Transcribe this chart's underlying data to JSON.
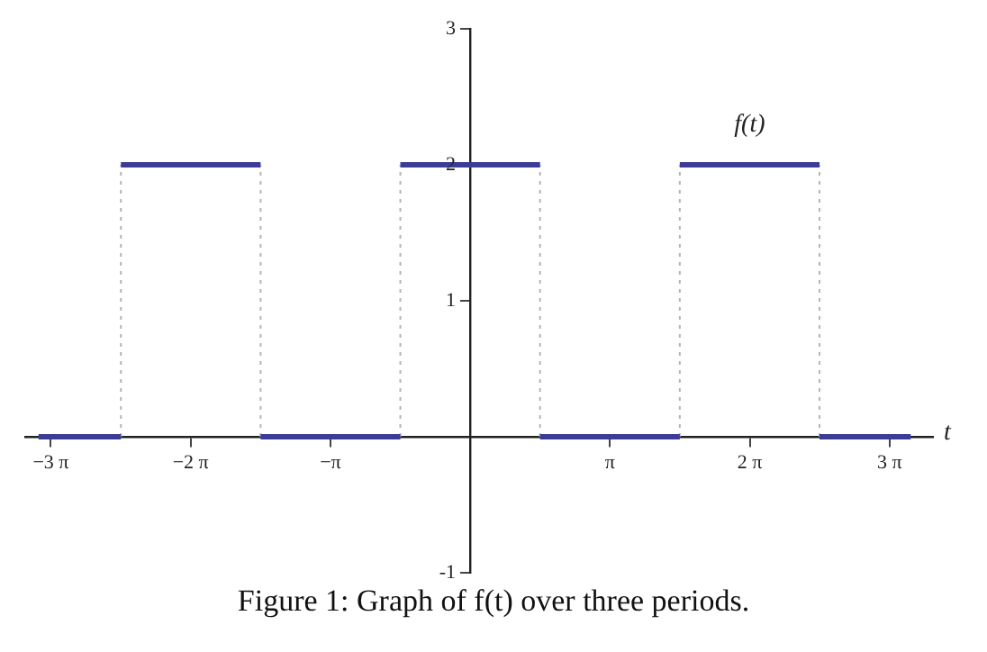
{
  "chart_data": {
    "type": "line",
    "xlabel": "t",
    "xlim": [
      -10.0,
      10.4
    ],
    "ylim": [
      -1,
      3
    ],
    "xticks": [
      {
        "value": -9.4248,
        "label": "−3 π"
      },
      {
        "value": -6.2832,
        "label": "−2 π"
      },
      {
        "value": -3.1416,
        "label": "−π"
      },
      {
        "value": 3.1416,
        "label": "π"
      },
      {
        "value": 6.2832,
        "label": "2 π"
      },
      {
        "value": 9.4248,
        "label": "3 π"
      }
    ],
    "yticks": [
      -1,
      1,
      2,
      3
    ],
    "grid": false,
    "marker": "none",
    "series": [
      {
        "color": "#3c3c96",
        "line_style": "solid",
        "x": [
          -9.7,
          -7.85
        ],
        "values": [
          0,
          0
        ]
      },
      {
        "color": "#3c3c96",
        "line_style": "solid",
        "x": [
          -7.85,
          -4.71
        ],
        "values": [
          2,
          2
        ]
      },
      {
        "color": "#3c3c96",
        "line_style": "solid",
        "x": [
          -4.71,
          -1.57
        ],
        "values": [
          0,
          0
        ]
      },
      {
        "color": "#3c3c96",
        "line_style": "solid",
        "x": [
          -1.57,
          1.57
        ],
        "values": [
          2,
          2
        ]
      },
      {
        "color": "#3c3c96",
        "line_style": "solid",
        "x": [
          1.57,
          4.71
        ],
        "values": [
          0,
          0
        ]
      },
      {
        "name": "f(t)",
        "color": "#3c3c96",
        "line_style": "solid",
        "x": [
          4.71,
          7.85
        ],
        "values": [
          2,
          2
        ]
      },
      {
        "color": "#3c3c96",
        "line_style": "solid",
        "x": [
          7.85,
          9.9
        ],
        "values": [
          0,
          0
        ]
      },
      {
        "color": "#b4b4b4",
        "line_style": "dotted",
        "x": [
          -7.85,
          -7.85
        ],
        "values": [
          0,
          2
        ]
      },
      {
        "color": "#b4b4b4",
        "line_style": "dotted",
        "x": [
          -4.71,
          -4.71
        ],
        "values": [
          0,
          2
        ]
      },
      {
        "color": "#b4b4b4",
        "line_style": "dotted",
        "x": [
          -1.57,
          -1.57
        ],
        "values": [
          0,
          2
        ]
      },
      {
        "color": "#b4b4b4",
        "line_style": "dotted",
        "x": [
          1.57,
          1.57
        ],
        "values": [
          0,
          2
        ]
      },
      {
        "color": "#b4b4b4",
        "line_style": "dotted",
        "x": [
          4.71,
          4.71
        ],
        "values": [
          0,
          2
        ]
      },
      {
        "color": "#b4b4b4",
        "line_style": "dotted",
        "x": [
          7.85,
          7.85
        ],
        "values": [
          0,
          2
        ]
      }
    ],
    "annotations": [
      "Figure 1: Graph of f(t) over three periods."
    ]
  }
}
